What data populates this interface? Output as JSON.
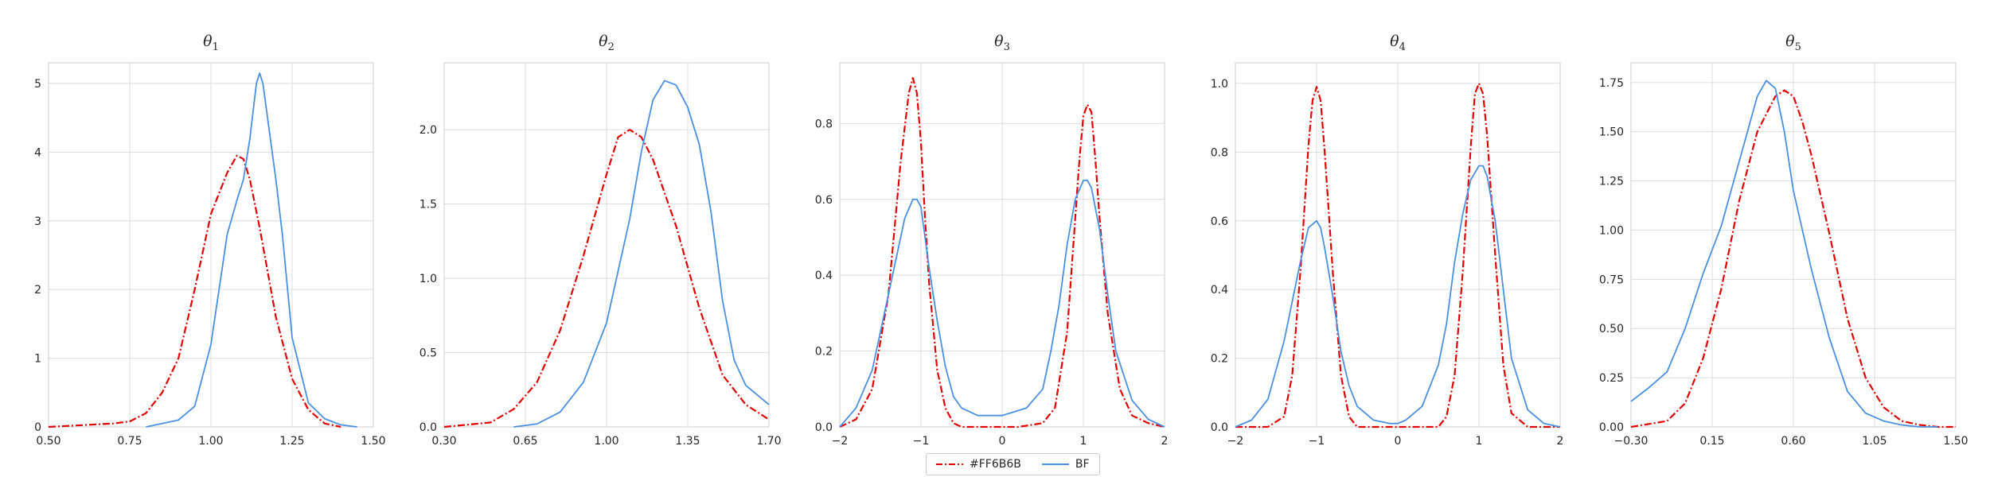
{
  "colors": {
    "series1": "#e00000",
    "series2": "#4a90e2",
    "grid": "#dddddd",
    "axis": "#cccccc"
  },
  "legend": {
    "placement": "bottom-center",
    "items": [
      "#FF6B6B",
      "BF"
    ]
  },
  "chart_data": [
    {
      "type": "line",
      "title": "θ1",
      "xlim": [
        0.5,
        1.5
      ],
      "ylim": [
        0,
        5.3
      ],
      "xticks": [
        "0.50",
        "0.75",
        "1.00",
        "1.25",
        "1.50"
      ],
      "yticks": [
        "0",
        "1",
        "2",
        "3",
        "4",
        "5"
      ],
      "xtick_values": [
        0.5,
        0.75,
        1.0,
        1.25,
        1.5
      ],
      "ytick_values": [
        0,
        1,
        2,
        3,
        4,
        5
      ],
      "series": [
        {
          "name": "#FF6B6B",
          "style": "dashdot",
          "x": [
            0.5,
            0.7,
            0.75,
            0.8,
            0.85,
            0.9,
            0.95,
            1.0,
            1.05,
            1.08,
            1.1,
            1.12,
            1.15,
            1.2,
            1.25,
            1.3,
            1.35,
            1.4
          ],
          "y": [
            0.0,
            0.05,
            0.08,
            0.2,
            0.5,
            1.0,
            2.0,
            3.1,
            3.7,
            3.95,
            3.9,
            3.6,
            2.9,
            1.6,
            0.7,
            0.25,
            0.05,
            0.0
          ]
        },
        {
          "name": "BF",
          "style": "solid",
          "x": [
            0.8,
            0.9,
            0.95,
            1.0,
            1.05,
            1.08,
            1.1,
            1.12,
            1.14,
            1.15,
            1.16,
            1.18,
            1.2,
            1.22,
            1.25,
            1.3,
            1.35,
            1.4,
            1.45
          ],
          "y": [
            0.0,
            0.1,
            0.3,
            1.2,
            2.8,
            3.3,
            3.6,
            4.2,
            5.0,
            5.15,
            5.0,
            4.3,
            3.6,
            2.8,
            1.3,
            0.35,
            0.12,
            0.03,
            0.0
          ]
        }
      ]
    },
    {
      "type": "line",
      "title": "θ2",
      "xlim": [
        0.3,
        1.7
      ],
      "ylim": [
        0,
        2.45
      ],
      "xticks": [
        "0.30",
        "0.65",
        "1.00",
        "1.35",
        "1.70"
      ],
      "yticks": [
        "0.0",
        "0.5",
        "1.0",
        "1.5",
        "2.0"
      ],
      "xtick_values": [
        0.3,
        0.65,
        1.0,
        1.35,
        1.7
      ],
      "ytick_values": [
        0,
        0.5,
        1.0,
        1.5,
        2.0
      ],
      "series": [
        {
          "name": "#FF6B6B",
          "style": "dashdot",
          "x": [
            0.3,
            0.5,
            0.6,
            0.7,
            0.8,
            0.9,
            1.0,
            1.05,
            1.1,
            1.15,
            1.2,
            1.3,
            1.4,
            1.5,
            1.6,
            1.7
          ],
          "y": [
            0.0,
            0.03,
            0.12,
            0.3,
            0.65,
            1.15,
            1.7,
            1.95,
            2.0,
            1.95,
            1.8,
            1.35,
            0.8,
            0.35,
            0.15,
            0.05
          ]
        },
        {
          "name": "BF",
          "style": "solid",
          "x": [
            0.6,
            0.7,
            0.8,
            0.9,
            1.0,
            1.1,
            1.15,
            1.2,
            1.25,
            1.3,
            1.35,
            1.4,
            1.45,
            1.5,
            1.55,
            1.6,
            1.7
          ],
          "y": [
            0.0,
            0.02,
            0.1,
            0.3,
            0.7,
            1.4,
            1.85,
            2.2,
            2.33,
            2.3,
            2.15,
            1.9,
            1.45,
            0.85,
            0.45,
            0.28,
            0.15
          ]
        }
      ]
    },
    {
      "type": "line",
      "title": "θ3",
      "xlim": [
        -2,
        2
      ],
      "ylim": [
        0,
        0.96
      ],
      "xticks": [
        "−2",
        "−1",
        "0",
        "1",
        "2"
      ],
      "yticks": [
        "0.0",
        "0.2",
        "0.4",
        "0.6",
        "0.8"
      ],
      "xtick_values": [
        -2,
        -1,
        0,
        1,
        2
      ],
      "ytick_values": [
        0,
        0.2,
        0.4,
        0.6,
        0.8
      ],
      "series": [
        {
          "name": "#FF6B6B",
          "style": "dashdot",
          "x": [
            -2,
            -1.8,
            -1.6,
            -1.4,
            -1.25,
            -1.15,
            -1.1,
            -1.05,
            -1.0,
            -0.95,
            -0.9,
            -0.8,
            -0.7,
            -0.6,
            -0.5,
            -0.2,
            0.2,
            0.5,
            0.65,
            0.8,
            0.9,
            0.95,
            1.0,
            1.05,
            1.1,
            1.15,
            1.2,
            1.3,
            1.45,
            1.6,
            1.8,
            2.0
          ],
          "y": [
            0.0,
            0.02,
            0.1,
            0.35,
            0.7,
            0.88,
            0.92,
            0.88,
            0.75,
            0.55,
            0.38,
            0.15,
            0.05,
            0.01,
            0.0,
            0.0,
            0.0,
            0.01,
            0.05,
            0.25,
            0.55,
            0.7,
            0.82,
            0.85,
            0.83,
            0.7,
            0.55,
            0.3,
            0.1,
            0.03,
            0.01,
            0.0
          ]
        },
        {
          "name": "BF",
          "style": "solid",
          "x": [
            -2,
            -1.8,
            -1.6,
            -1.4,
            -1.2,
            -1.1,
            -1.05,
            -1.0,
            -0.95,
            -0.9,
            -0.8,
            -0.7,
            -0.6,
            -0.5,
            -0.3,
            0.0,
            0.3,
            0.5,
            0.6,
            0.7,
            0.8,
            0.9,
            1.0,
            1.05,
            1.1,
            1.2,
            1.3,
            1.4,
            1.6,
            1.8,
            2.0
          ],
          "y": [
            0.0,
            0.05,
            0.15,
            0.35,
            0.55,
            0.6,
            0.6,
            0.58,
            0.5,
            0.42,
            0.28,
            0.16,
            0.08,
            0.05,
            0.03,
            0.03,
            0.05,
            0.1,
            0.2,
            0.32,
            0.48,
            0.6,
            0.65,
            0.65,
            0.63,
            0.52,
            0.35,
            0.2,
            0.07,
            0.02,
            0.0
          ]
        }
      ]
    },
    {
      "type": "line",
      "title": "θ4",
      "xlim": [
        -2,
        2
      ],
      "ylim": [
        0,
        1.06
      ],
      "xticks": [
        "−2",
        "−1",
        "0",
        "1",
        "2"
      ],
      "yticks": [
        "0.0",
        "0.2",
        "0.4",
        "0.6",
        "0.8",
        "1.0"
      ],
      "xtick_values": [
        -2,
        -1,
        0,
        1,
        2
      ],
      "ytick_values": [
        0,
        0.2,
        0.4,
        0.6,
        0.8,
        1.0
      ],
      "series": [
        {
          "name": "#FF6B6B",
          "style": "dashdot",
          "x": [
            -2,
            -1.6,
            -1.4,
            -1.3,
            -1.2,
            -1.1,
            -1.05,
            -1.0,
            -0.95,
            -0.9,
            -0.8,
            -0.7,
            -0.6,
            -0.5,
            -0.3,
            0.3,
            0.5,
            0.6,
            0.7,
            0.8,
            0.9,
            0.95,
            1.0,
            1.05,
            1.1,
            1.2,
            1.3,
            1.4,
            1.6,
            2.0
          ],
          "y": [
            0.0,
            0.0,
            0.03,
            0.15,
            0.45,
            0.82,
            0.95,
            0.99,
            0.95,
            0.8,
            0.45,
            0.15,
            0.03,
            0.0,
            0.0,
            0.0,
            0.0,
            0.03,
            0.15,
            0.45,
            0.82,
            0.97,
            1.0,
            0.97,
            0.85,
            0.5,
            0.18,
            0.04,
            0.0,
            0.0
          ]
        },
        {
          "name": "BF",
          "style": "solid",
          "x": [
            -2,
            -1.8,
            -1.6,
            -1.4,
            -1.2,
            -1.1,
            -1.0,
            -0.95,
            -0.9,
            -0.8,
            -0.7,
            -0.6,
            -0.5,
            -0.3,
            -0.1,
            0.0,
            0.1,
            0.3,
            0.5,
            0.6,
            0.7,
            0.8,
            0.9,
            1.0,
            1.05,
            1.1,
            1.2,
            1.3,
            1.4,
            1.6,
            1.8,
            2.0
          ],
          "y": [
            0.0,
            0.02,
            0.08,
            0.25,
            0.48,
            0.58,
            0.6,
            0.58,
            0.52,
            0.38,
            0.22,
            0.12,
            0.06,
            0.02,
            0.01,
            0.01,
            0.02,
            0.06,
            0.18,
            0.3,
            0.48,
            0.62,
            0.72,
            0.76,
            0.76,
            0.73,
            0.6,
            0.4,
            0.2,
            0.05,
            0.01,
            0.0
          ]
        }
      ]
    },
    {
      "type": "line",
      "title": "θ5",
      "xlim": [
        -0.3,
        1.5
      ],
      "ylim": [
        0,
        1.85
      ],
      "xticks": [
        "−0.30",
        "0.15",
        "0.60",
        "1.05",
        "1.50"
      ],
      "yticks": [
        "0.00",
        "0.25",
        "0.50",
        "0.75",
        "1.00",
        "1.25",
        "1.50",
        "1.75"
      ],
      "xtick_values": [
        -0.3,
        0.15,
        0.6,
        1.05,
        1.5
      ],
      "ytick_values": [
        0,
        0.25,
        0.5,
        0.75,
        1.0,
        1.25,
        1.5,
        1.75
      ],
      "series": [
        {
          "name": "#FF6B6B",
          "style": "dashdot",
          "x": [
            -0.3,
            -0.1,
            0.0,
            0.1,
            0.2,
            0.3,
            0.4,
            0.5,
            0.55,
            0.6,
            0.65,
            0.7,
            0.8,
            0.9,
            1.0,
            1.1,
            1.2,
            1.3,
            1.4,
            1.5
          ],
          "y": [
            0.0,
            0.03,
            0.12,
            0.35,
            0.7,
            1.15,
            1.5,
            1.68,
            1.71,
            1.68,
            1.55,
            1.38,
            0.98,
            0.55,
            0.25,
            0.1,
            0.03,
            0.01,
            0.0,
            0.0
          ]
        },
        {
          "name": "BF",
          "style": "solid",
          "x": [
            -0.3,
            -0.2,
            -0.1,
            0.0,
            0.1,
            0.2,
            0.3,
            0.4,
            0.45,
            0.5,
            0.55,
            0.6,
            0.7,
            0.8,
            0.9,
            1.0,
            1.1,
            1.2,
            1.3,
            1.4
          ],
          "y": [
            0.13,
            0.2,
            0.28,
            0.5,
            0.78,
            1.02,
            1.35,
            1.68,
            1.76,
            1.72,
            1.5,
            1.2,
            0.8,
            0.45,
            0.18,
            0.07,
            0.03,
            0.01,
            0.0,
            0.0
          ]
        }
      ]
    }
  ]
}
